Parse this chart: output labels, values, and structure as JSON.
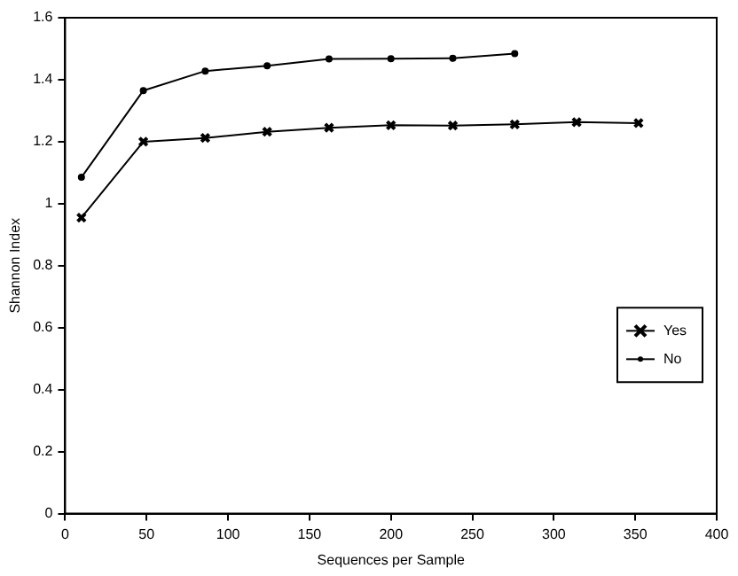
{
  "chart_data": {
    "type": "line",
    "xlabel": "Sequences per Sample",
    "ylabel": "Shannon Index",
    "xlim": [
      0,
      400
    ],
    "xticks": [
      0,
      50,
      100,
      150,
      200,
      250,
      300,
      350,
      400
    ],
    "ylim": [
      0,
      1.6
    ],
    "yticks": [
      0,
      0.2,
      0.4,
      0.6,
      0.8,
      1,
      1.2,
      1.4,
      1.6
    ],
    "grid": false,
    "legend": "right",
    "series": [
      {
        "name": "Yes",
        "color": "#000000",
        "marker": "cross",
        "x": [
          10,
          48,
          86,
          124,
          162,
          200,
          238,
          276,
          314,
          352
        ],
        "values": [
          0.955,
          1.2,
          1.212,
          1.232,
          1.245,
          1.253,
          1.252,
          1.256,
          1.263,
          1.26
        ]
      },
      {
        "name": "No",
        "color": "#000000",
        "marker": "circle",
        "x": [
          10,
          48,
          86,
          124,
          162,
          200,
          238,
          276
        ],
        "values": [
          1.085,
          1.365,
          1.428,
          1.445,
          1.467,
          1.468,
          1.469,
          1.484
        ]
      }
    ]
  }
}
